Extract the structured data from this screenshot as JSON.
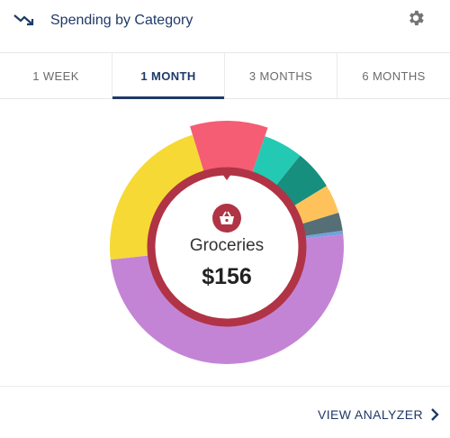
{
  "header": {
    "title": "Spending by Category",
    "trend_icon": "trending-down-icon",
    "settings_icon": "gear-icon"
  },
  "tabs": [
    {
      "label": "1 WEEK",
      "active": false
    },
    {
      "label": "1 MONTH",
      "active": true
    },
    {
      "label": "3 MONTHS",
      "active": false
    },
    {
      "label": "6 MONTHS",
      "active": false
    }
  ],
  "selected": {
    "category": "Groceries",
    "amount": "$156",
    "icon": "shopping-basket-icon"
  },
  "chart_data": {
    "type": "pie",
    "segments": [
      {
        "color": "#f45d74",
        "share": 0.1
      },
      {
        "color": "#24c9b3",
        "share": 0.055
      },
      {
        "color": "#168f7e",
        "share": 0.055
      },
      {
        "color": "#ffc25a",
        "share": 0.04
      },
      {
        "color": "#566e76",
        "share": 0.025
      },
      {
        "color": "#6fa3dd",
        "share": 0.005
      },
      {
        "color": "#c484d6",
        "share": 0.5
      },
      {
        "color": "#f6d935",
        "share": 0.22
      }
    ]
  },
  "footer": {
    "link_label": "VIEW ANALYZER"
  },
  "colors": {
    "brand": "#1f3a68",
    "highlight_ring": "#b03445"
  }
}
